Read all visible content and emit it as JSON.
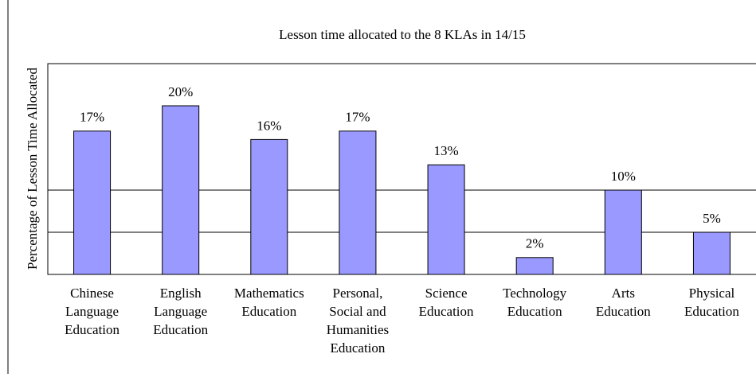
{
  "chart_data": {
    "type": "bar",
    "title": "Lesson time allocated to the 8 KLAs in 14/15",
    "y_label": "Percentage of Lesson Time Allocated",
    "categories": [
      "Chinese\nLanguage\nEducation",
      "English\nLanguage\nEducation",
      "Mathematics\nEducation",
      "Personal,\nSocial and\nHumanities\nEducation",
      "Science\nEducation",
      "Technology\nEducation",
      "Arts\nEducation",
      "Physical\nEducation"
    ],
    "values": [
      17,
      20,
      16,
      17,
      13,
      2,
      10,
      5
    ],
    "value_labels": [
      "17%",
      "20%",
      "16%",
      "17%",
      "13%",
      "2%",
      "10%",
      "5%"
    ],
    "color": "#9999ff",
    "ylim": [
      0,
      25
    ],
    "gridlines": [
      5,
      10
    ]
  }
}
